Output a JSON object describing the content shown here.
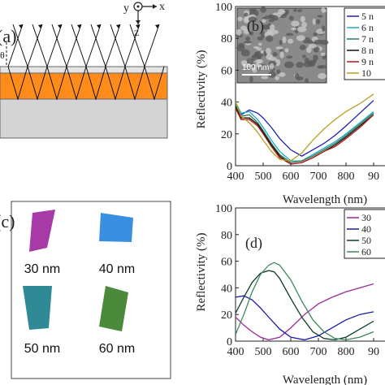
{
  "panel_a": {
    "label": "(a)",
    "axes": {
      "y": "y",
      "x": "x",
      "z": "z"
    },
    "angle": "θ"
  },
  "panel_c": {
    "label": "(c)",
    "samples": [
      {
        "label": "30 nm",
        "color": "#a83aa8"
      },
      {
        "label": "40 nm",
        "color": "#3b8fe0"
      },
      {
        "label": "50 nm",
        "color": "#2f8a95"
      },
      {
        "label": "60 nm",
        "color": "#4a8a3a"
      }
    ]
  },
  "panel_b": {
    "label": "(b)",
    "inset_scale": "100 nm",
    "xlabel": "Wavelength (nm)",
    "ylabel": "Reflectivity (%)",
    "xticks": [
      "400",
      "500",
      "600",
      "700",
      "800",
      "90"
    ],
    "yticks": [
      "0",
      "20",
      "40",
      "60",
      "80",
      "100"
    ],
    "legend": [
      "5 n",
      "6 n",
      "7 n",
      "8 n",
      "9 n",
      "10"
    ]
  },
  "panel_d": {
    "label": "(d)",
    "xlabel": "Wavelength (nm)",
    "ylabel": "Reflectivity (%)",
    "xticks": [
      "400",
      "500",
      "600",
      "700",
      "800",
      "90"
    ],
    "yticks": [
      "0",
      "20",
      "40",
      "60",
      "80",
      "100"
    ],
    "legend": [
      "30",
      "40",
      "50",
      "60"
    ]
  },
  "chart_data": [
    {
      "type": "line",
      "title": "",
      "xlabel": "Wavelength (nm)",
      "ylabel": "Reflectivity (%)",
      "xlim": [
        400,
        900
      ],
      "ylim": [
        0,
        100
      ],
      "grid": false,
      "legend_position": "top-right",
      "series": [
        {
          "name": "5 n",
          "color": "#1f1fb4",
          "x": [
            400,
            420,
            450,
            480,
            500,
            530,
            560,
            600,
            640,
            680,
            720,
            760,
            800,
            850,
            900
          ],
          "y": [
            38,
            32,
            35,
            33,
            30,
            24,
            17,
            10,
            6,
            10,
            14,
            19,
            25,
            33,
            41
          ]
        },
        {
          "name": "6 n",
          "color": "#22a8c8",
          "x": [
            400,
            420,
            450,
            480,
            500,
            530,
            560,
            600,
            640,
            680,
            720,
            760,
            800,
            850,
            900
          ],
          "y": [
            40,
            33,
            34,
            29,
            24,
            16,
            9,
            3,
            3,
            7,
            11,
            15,
            20,
            27,
            34
          ]
        },
        {
          "name": "7 n",
          "color": "#2a7a4a",
          "x": [
            400,
            420,
            450,
            480,
            500,
            530,
            560,
            600,
            640,
            680,
            720,
            760,
            800,
            850,
            900
          ],
          "y": [
            38,
            31,
            32,
            27,
            22,
            14,
            7,
            2,
            3,
            6,
            10,
            14,
            19,
            26,
            33
          ]
        },
        {
          "name": "8 n",
          "color": "#111111",
          "x": [
            400,
            420,
            450,
            480,
            500,
            530,
            560,
            600,
            640,
            680,
            720,
            760,
            800,
            850,
            900
          ],
          "y": [
            37,
            30,
            30,
            26,
            21,
            13,
            6,
            1,
            2,
            5,
            9,
            13,
            18,
            25,
            32
          ]
        },
        {
          "name": "9 n",
          "color": "#b41818",
          "x": [
            400,
            420,
            450,
            480,
            500,
            530,
            560,
            600,
            640,
            680,
            720,
            760,
            800,
            850,
            900
          ],
          "y": [
            36,
            29,
            29,
            25,
            20,
            12,
            5,
            1,
            2,
            5,
            9,
            12,
            17,
            24,
            32
          ]
        },
        {
          "name": "10",
          "color": "#b8a020",
          "x": [
            400,
            420,
            450,
            480,
            500,
            530,
            560,
            600,
            640,
            680,
            720,
            760,
            800,
            850,
            900
          ],
          "y": [
            40,
            31,
            27,
            21,
            16,
            9,
            4,
            3,
            8,
            16,
            23,
            29,
            34,
            39,
            45
          ]
        }
      ]
    },
    {
      "type": "line",
      "title": "",
      "xlabel": "Wavelength (nm)",
      "ylabel": "Reflectivity (%)",
      "xlim": [
        400,
        900
      ],
      "ylim": [
        0,
        100
      ],
      "grid": false,
      "legend_position": "top-right",
      "series": [
        {
          "name": "30",
          "color": "#9a2a9a",
          "x": [
            400,
            430,
            460,
            490,
            520,
            560,
            600,
            650,
            700,
            750,
            800,
            850,
            900
          ],
          "y": [
            18,
            12,
            7,
            3,
            1,
            3,
            10,
            20,
            28,
            33,
            37,
            40,
            43
          ]
        },
        {
          "name": "40",
          "color": "#1a1aa8",
          "x": [
            400,
            430,
            460,
            490,
            520,
            560,
            600,
            650,
            700,
            750,
            800,
            850,
            900
          ],
          "y": [
            33,
            34,
            31,
            25,
            18,
            9,
            3,
            1,
            4,
            10,
            16,
            20,
            22
          ]
        },
        {
          "name": "50",
          "color": "#0e3e2a",
          "x": [
            400,
            430,
            460,
            490,
            520,
            540,
            560,
            600,
            640,
            680,
            720,
            760,
            800,
            850,
            900
          ],
          "y": [
            21,
            33,
            44,
            51,
            53,
            52,
            47,
            32,
            18,
            7,
            2,
            1,
            3,
            9,
            15
          ]
        },
        {
          "name": "60",
          "color": "#3a8a5a",
          "x": [
            400,
            430,
            460,
            490,
            520,
            540,
            560,
            600,
            640,
            680,
            720,
            760,
            800,
            850,
            900
          ],
          "y": [
            5,
            20,
            37,
            50,
            57,
            59,
            57,
            46,
            30,
            16,
            7,
            2,
            1,
            3,
            7
          ]
        }
      ]
    }
  ]
}
